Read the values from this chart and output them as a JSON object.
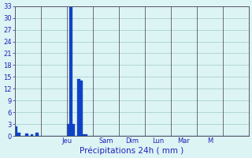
{
  "xlabel": "Précipitations 24h ( mm )",
  "ylim": [
    0,
    33
  ],
  "yticks": [
    0,
    3,
    6,
    9,
    12,
    15,
    18,
    21,
    24,
    27,
    30,
    33
  ],
  "background_color": "#ddf4f4",
  "grid_color": "#a0c8c8",
  "bar_color": "#1144cc",
  "bar_edge_color": "#0033aa",
  "day_labels": [
    "Jeu",
    "Sam",
    "Dim",
    "Lun",
    "Mar",
    "M"
  ],
  "n_bars": 90,
  "bar_values": [
    2.5,
    0.8,
    0,
    0,
    0.7,
    0,
    0.5,
    0,
    0.8,
    0,
    0,
    0,
    0,
    0,
    0,
    0,
    0,
    0,
    0,
    0,
    3.0,
    32.8,
    3.0,
    0,
    14.5,
    14.0,
    0.5,
    0.5,
    0,
    0,
    0,
    0,
    0,
    0,
    0,
    0,
    0,
    0,
    0,
    0,
    0,
    0,
    0,
    0,
    0,
    0,
    0,
    0,
    0,
    0,
    0,
    0,
    0,
    0,
    0,
    0,
    0,
    0,
    0,
    0,
    0,
    0,
    0,
    0,
    0,
    0,
    0,
    0,
    0,
    0,
    0,
    0,
    0,
    0,
    0,
    0,
    0,
    0,
    0,
    0,
    0,
    0,
    0,
    0,
    0,
    0,
    0,
    0,
    0,
    0
  ],
  "text_color": "#2222bb",
  "spine_color": "#555566",
  "xlabel_fontsize": 7.5,
  "tick_fontsize": 6.0
}
